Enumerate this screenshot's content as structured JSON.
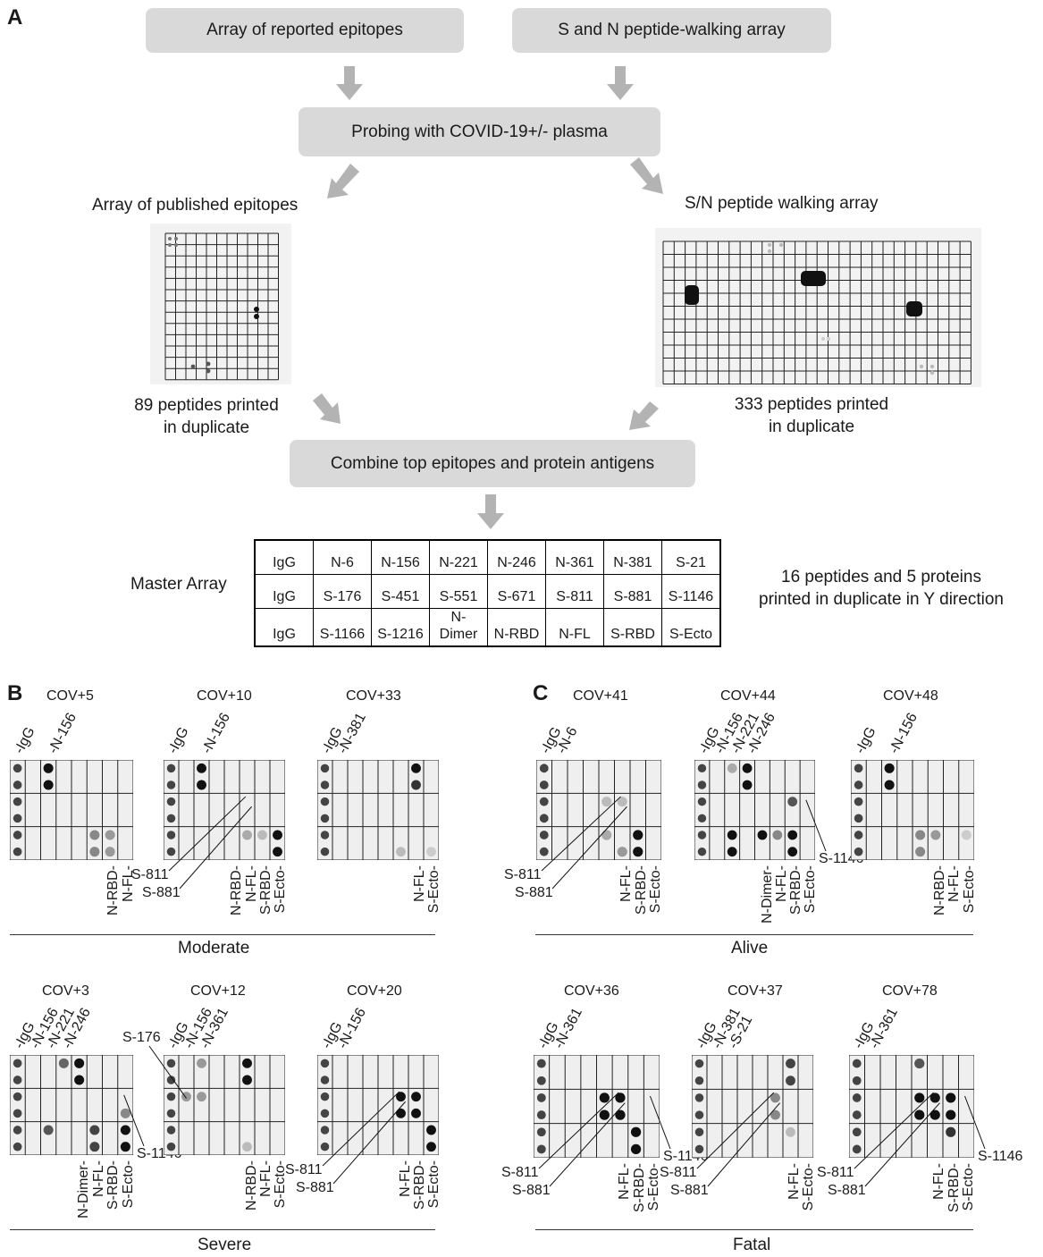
{
  "panels": {
    "a": "A",
    "b": "B",
    "c": "C"
  },
  "flow": {
    "box_reported": "Array of reported epitopes",
    "box_walking": "S and N  peptide-walking array",
    "box_probing": "Probing with COVID-19+/- plasma",
    "label_published": "Array of published epitopes",
    "label_sn": "S/N peptide walking array",
    "caption_published_l1": "89 peptides printed",
    "caption_published_l2": "in duplicate",
    "caption_sn_l1": "333 peptides printed",
    "caption_sn_l2": "in duplicate",
    "box_combine": "Combine top epitopes and protein antigens",
    "master_label": "Master Array",
    "master_note_l1": "16 peptides and 5 proteins",
    "master_note_l2": "printed in duplicate in Y direction",
    "arrow_color": "#b3b3b3",
    "box_color": "#d9d9d9"
  },
  "master_array": {
    "rows": [
      [
        "IgG",
        "N-6",
        "N-156",
        "N-221",
        "N-246",
        "N-361",
        "N-381",
        "S-21"
      ],
      [
        "IgG",
        "S-176",
        "S-451",
        "S-551",
        "S-671",
        "S-811",
        "S-881",
        "S-1146"
      ],
      [
        "IgG",
        "S-1166",
        "S-1216",
        "N-\nDimer",
        "N-RBD",
        "N-FL",
        "S-RBD",
        "S-Ecto"
      ]
    ]
  },
  "groups": {
    "moderate": "Moderate",
    "severe": "Severe",
    "alive": "Alive",
    "fatal": "Fatal"
  },
  "blots": [
    {
      "title": "COV+5",
      "top": [
        "-IgG",
        "-N-156"
      ],
      "bottom": [
        "N-RBD-",
        "N-FL-"
      ],
      "callouts": []
    },
    {
      "title": "COV+10",
      "top": [
        "-IgG",
        "-N-156"
      ],
      "bottom": [
        "N-RBD-",
        "N-FL-",
        "S-RBD-",
        "S-Ecto-"
      ],
      "callouts": [
        "S-811",
        "S-881"
      ]
    },
    {
      "title": "COV+33",
      "top": [
        "-IgG",
        "-N-381"
      ],
      "bottom": [
        "N-FL-",
        "S-Ecto-"
      ],
      "callouts": []
    },
    {
      "title": "COV+3",
      "top": [
        "-IgG",
        "-N-156",
        "-N-221",
        "-N-246"
      ],
      "bottom": [
        "N-Dimer-",
        "N-FL-",
        "S-RBD-",
        "S-Ecto-"
      ],
      "callouts": [
        "S-1146"
      ]
    },
    {
      "title": "COV+12",
      "top": [
        "-IgG",
        "-N-156",
        "-N-361"
      ],
      "bottom": [
        "N-RBD-",
        "N-FL-",
        "S-Ecto-"
      ],
      "callouts": [
        "S-176"
      ]
    },
    {
      "title": "COV+20",
      "top": [
        "-IgG",
        "-N-156"
      ],
      "bottom": [
        "N-FL-",
        "S-RBD-",
        "S-Ecto-"
      ],
      "callouts": [
        "S-811",
        "S-881"
      ]
    },
    {
      "title": "COV+41",
      "top": [
        "-IgG",
        "-N-6"
      ],
      "bottom": [
        "N-FL-",
        "S-RBD-",
        "S-Ecto-"
      ],
      "callouts": [
        "S-811",
        "S-881"
      ]
    },
    {
      "title": "COV+44",
      "top": [
        "-IgG",
        "-N-156",
        "-N-221",
        "-N-246"
      ],
      "bottom": [
        "N-Dimer-",
        "N-FL-",
        "S-RBD-",
        "S-Ecto-"
      ],
      "callouts": [
        "S-1146"
      ]
    },
    {
      "title": "COV+48",
      "top": [
        "-IgG",
        "-N-156"
      ],
      "bottom": [
        "N-RBD-",
        "N-FL-",
        "S-Ecto-"
      ],
      "callouts": []
    },
    {
      "title": "COV+36",
      "top": [
        "-IgG",
        "-N-361"
      ],
      "bottom": [
        "N-FL-",
        "S-RBD-",
        "S-Ecto-"
      ],
      "callouts": [
        "S-811",
        "S-881",
        "S-1146"
      ]
    },
    {
      "title": "COV+37",
      "top": [
        "-IgG",
        "-N-381",
        "-S-21"
      ],
      "bottom": [
        "N-FL-",
        "S-Ecto-"
      ],
      "callouts": [
        "S-811",
        "S-881"
      ]
    },
    {
      "title": "COV+78",
      "top": [
        "-IgG",
        "-N-361"
      ],
      "bottom": [
        "N-FL-",
        "S-RBD-",
        "S-Ecto-"
      ],
      "callouts": [
        "S-811",
        "S-881",
        "S-1146"
      ]
    }
  ]
}
